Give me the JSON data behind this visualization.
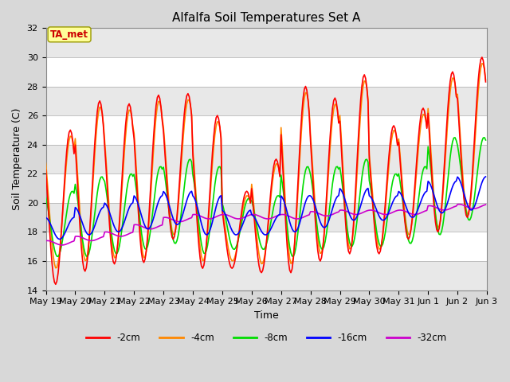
{
  "title": "Alfalfa Soil Temperatures Set A",
  "xlabel": "Time",
  "ylabel": "Soil Temperature (C)",
  "ylim": [
    14,
    32
  ],
  "yticks": [
    14,
    16,
    18,
    20,
    22,
    24,
    26,
    28,
    30,
    32
  ],
  "fig_bg_color": "#d8d8d8",
  "plot_bg_color": "#ffffff",
  "band_color": "#e8e8e8",
  "grid_color": "#cccccc",
  "colors": {
    "2cm": "#ff0000",
    "4cm": "#ff8800",
    "8cm": "#00dd00",
    "16cm": "#0000ff",
    "32cm": "#cc00cc"
  },
  "legend_labels": [
    "-2cm",
    "-4cm",
    "-8cm",
    "-16cm",
    "-32cm"
  ],
  "annotation_text": "TA_met",
  "annotation_color": "#cc0000",
  "annotation_bg": "#ffff99",
  "n_days": 15,
  "start_day": 19,
  "start_month": "May"
}
